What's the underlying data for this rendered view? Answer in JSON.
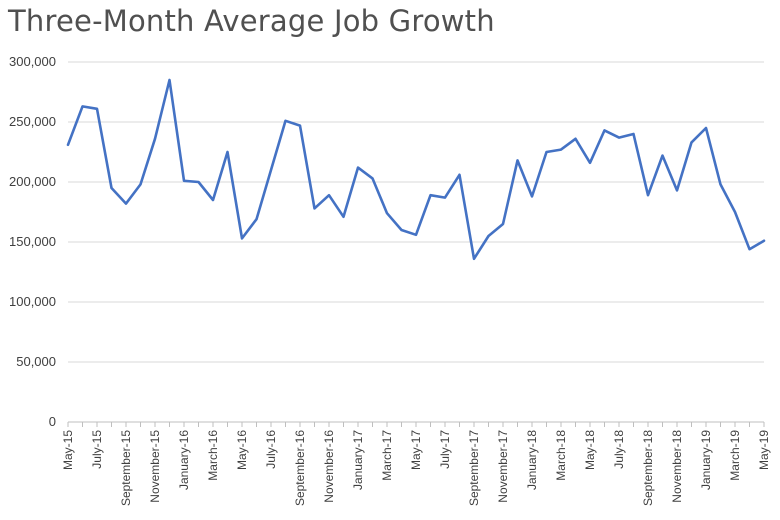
{
  "chart_data": {
    "type": "line",
    "title": "Three-Month Average Job Growth",
    "xlabel": "",
    "ylabel": "",
    "ylim": [
      0,
      300000
    ],
    "y_ticks": [
      0,
      50000,
      100000,
      150000,
      200000,
      250000,
      300000
    ],
    "y_tick_labels": [
      "0",
      "50,000",
      "100,000",
      "150,000",
      "200,000",
      "250,000",
      "300,000"
    ],
    "x": [
      "May-15",
      "Jun-15",
      "Jul-15",
      "Aug-15",
      "Sep-15",
      "Oct-15",
      "Nov-15",
      "Dec-15",
      "Jan-16",
      "Feb-16",
      "Mar-16",
      "Apr-16",
      "May-16",
      "Jun-16",
      "Jul-16",
      "Aug-16",
      "Sep-16",
      "Oct-16",
      "Nov-16",
      "Dec-16",
      "Jan-17",
      "Feb-17",
      "Mar-17",
      "Apr-17",
      "May-17",
      "Jun-17",
      "Jul-17",
      "Aug-17",
      "Sep-17",
      "Oct-17",
      "Nov-17",
      "Dec-17",
      "Jan-18",
      "Feb-18",
      "Mar-18",
      "Apr-18",
      "May-18",
      "Jun-18",
      "Jul-18",
      "Aug-18",
      "Sep-18",
      "Oct-18",
      "Nov-18",
      "Dec-18",
      "Jan-19",
      "Feb-19",
      "Mar-19",
      "Apr-19",
      "May-19"
    ],
    "x_tick_labels": [
      "May-15",
      "July-15",
      "September-15",
      "November-15",
      "January-16",
      "March-16",
      "May-16",
      "July-16",
      "September-16",
      "November-16",
      "January-17",
      "March-17",
      "May-17",
      "July-17",
      "September-17",
      "November-17",
      "January-18",
      "March-18",
      "May-18",
      "July-18",
      "September-18",
      "November-18",
      "January-19",
      "March-19",
      "May-19"
    ],
    "grid": true,
    "legend": "none",
    "series": [
      {
        "color": "#4472c4",
        "values": [
          231000,
          263000,
          261000,
          195000,
          182000,
          198000,
          236000,
          285000,
          201000,
          200000,
          185000,
          225000,
          153000,
          169000,
          210000,
          251000,
          247000,
          178000,
          189000,
          171000,
          212000,
          203000,
          174000,
          160000,
          156000,
          189000,
          187000,
          206000,
          136000,
          155000,
          165000,
          218000,
          188000,
          225000,
          227000,
          236000,
          216000,
          243000,
          237000,
          240000,
          189000,
          222000,
          193000,
          233000,
          245000,
          198000,
          175000,
          144000,
          151000
        ]
      }
    ]
  }
}
